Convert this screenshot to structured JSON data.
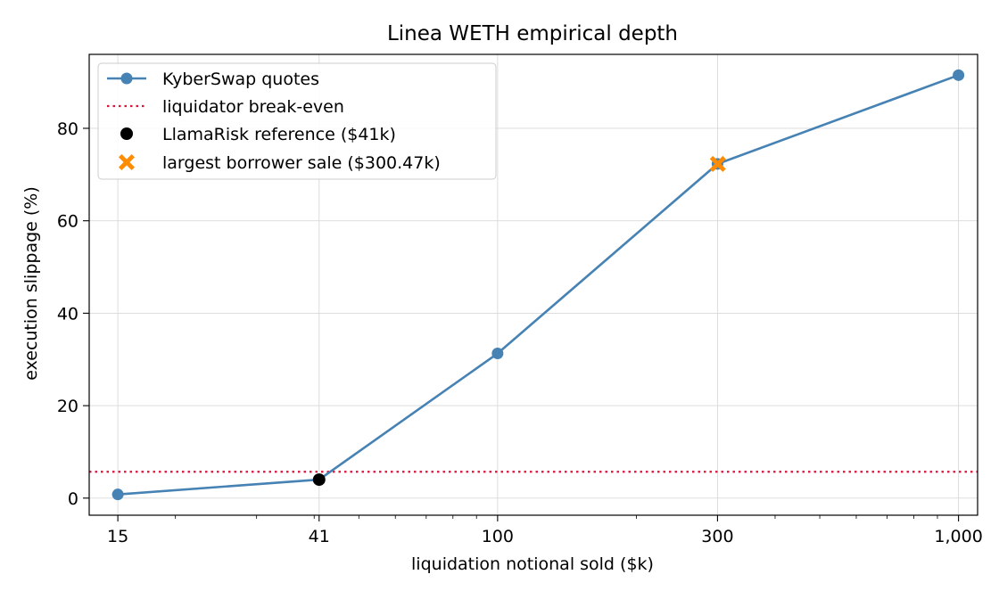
{
  "chart_data": {
    "type": "line",
    "title": "Linea WETH empirical depth",
    "xlabel": "liquidation notional sold ($k)",
    "ylabel": "execution slippage (%)",
    "x_scale": "log",
    "xlim": [
      13,
      1100
    ],
    "ylim": [
      -3.7,
      96
    ],
    "x_ticks": [
      15,
      41,
      100,
      300,
      1000
    ],
    "x_tick_labels": [
      "15",
      "41",
      "100",
      "300",
      "1,000"
    ],
    "y_ticks": [
      0,
      20,
      40,
      60,
      80
    ],
    "y_tick_labels": [
      "0",
      "20",
      "40",
      "60",
      "80"
    ],
    "grid": true,
    "legend_position": "top-left",
    "series": [
      {
        "name": "KyberSwap quotes",
        "kind": "line-marker",
        "color": "#4682b4",
        "x": [
          15,
          41,
          100,
          300,
          1000
        ],
        "y": [
          0.8,
          4.0,
          31.3,
          72.3,
          91.5
        ]
      },
      {
        "name": "liquidator break-even",
        "kind": "hline",
        "color": "#dc143c",
        "y": 5.7
      },
      {
        "name": "LlamaRisk reference ($41k)",
        "kind": "point",
        "color": "#000000",
        "x": 41,
        "y": 4.0
      },
      {
        "name": "largest borrower sale ($300.47k)",
        "kind": "x-marker",
        "color": "#ff8c00",
        "x": 300.47,
        "y": 72.3
      }
    ]
  }
}
